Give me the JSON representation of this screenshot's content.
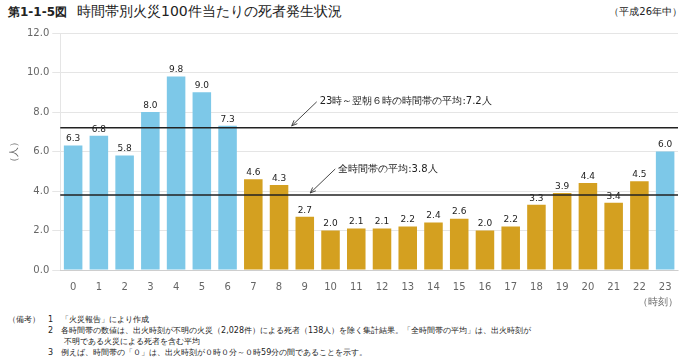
{
  "chart_data": {
    "type": "bar",
    "title_label": "第1-1-5図",
    "title": "時間帯別火災100件当たりの死者発生状況",
    "subtitle": "（平成26年中）",
    "xlabel": "（時刻）",
    "ylabel": "（人）",
    "categories": [
      "0",
      "1",
      "2",
      "3",
      "4",
      "5",
      "6",
      "7",
      "8",
      "9",
      "10",
      "11",
      "12",
      "13",
      "14",
      "15",
      "16",
      "17",
      "18",
      "19",
      "20",
      "21",
      "22",
      "23"
    ],
    "values": [
      6.3,
      6.8,
      5.8,
      8.0,
      9.8,
      9.0,
      7.3,
      4.6,
      4.3,
      2.7,
      2.0,
      2.1,
      2.1,
      2.2,
      2.4,
      2.6,
      2.0,
      2.2,
      3.3,
      3.9,
      4.4,
      3.4,
      4.5,
      6.0
    ],
    "value_labels": [
      "6.3",
      "6.8",
      "5.8",
      "8.0",
      "9.8",
      "9.0",
      "7.3",
      "4.6",
      "4.3",
      "2.7",
      "2.0",
      "2.1",
      "2.1",
      "2.2",
      "2.4",
      "2.6",
      "2.0",
      "2.2",
      "3.3",
      "3.9",
      "4.4",
      "3.4",
      "4.5",
      "6.0"
    ],
    "data_labels": true,
    "colors": [
      "#7dc8e8",
      "#7dc8e8",
      "#7dc8e8",
      "#7dc8e8",
      "#7dc8e8",
      "#7dc8e8",
      "#7dc8e8",
      "#d4a020",
      "#d4a020",
      "#d4a020",
      "#d4a020",
      "#d4a020",
      "#d4a020",
      "#d4a020",
      "#d4a020",
      "#d4a020",
      "#d4a020",
      "#d4a020",
      "#d4a020",
      "#d4a020",
      "#d4a020",
      "#d4a020",
      "#d4a020",
      "#7dc8e8"
    ],
    "ylim": [
      0.0,
      12.0
    ],
    "yticks": [
      {
        "value": 0,
        "label": "0.0"
      },
      {
        "value": 2,
        "label": "2.0"
      },
      {
        "value": 4,
        "label": "4.0"
      },
      {
        "value": 6,
        "label": "6.0"
      },
      {
        "value": 8,
        "label": "8.0"
      },
      {
        "value": 10,
        "label": "10.0"
      },
      {
        "value": 12,
        "label": "12.0"
      }
    ],
    "grid": true,
    "hlines": [
      {
        "value": 7.2,
        "label": "23時～翌朝６時の時間帯の平均:7.2人",
        "color": "#222222"
      },
      {
        "value": 3.8,
        "label": "全時間帯の平均:3.8人",
        "color": "#222222"
      }
    ],
    "notes": [
      "（備考）　1　「火災報告」により作成",
      "　　　　　2　各時間帯の数値は、出火時刻が不明の火災（2,028件）による死者（138人）を除く集計結果。「全時間帯の平均」は、出火時刻が",
      "　　　　　　　不明である火災による死者を含む平均",
      "　　　　　3　例えば、時間帯の「０」は、出火時刻が０時０分～０時59分の間であることを示す。"
    ]
  }
}
